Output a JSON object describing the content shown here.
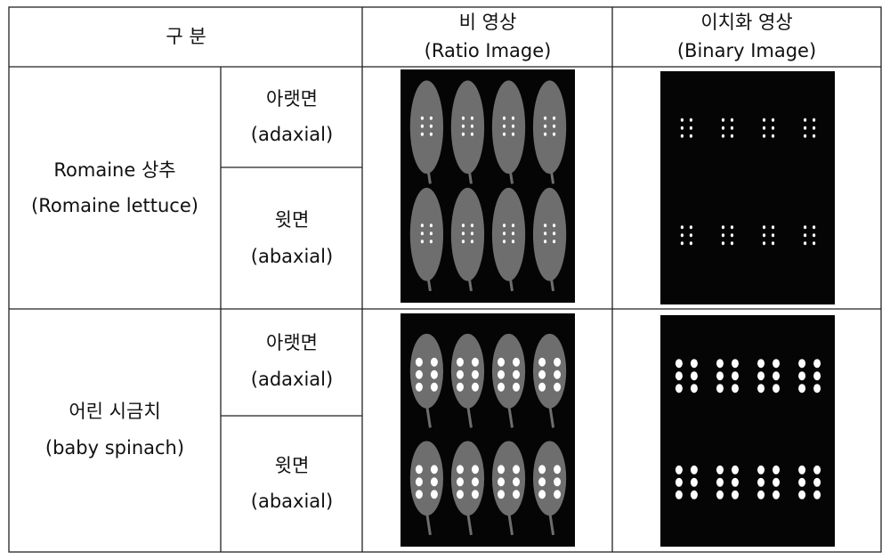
{
  "header": {
    "category": "구 분",
    "ratio": {
      "ko": "비 영상",
      "en": "(Ratio Image)"
    },
    "binary": {
      "ko": "이치화 영상",
      "en": "(Binary Image)"
    }
  },
  "rows": [
    {
      "sample": {
        "ko": "Romaine 상추",
        "en": "(Romaine lettuce)"
      },
      "sides": [
        {
          "ko": "아랫면",
          "en": "(adaxial)"
        },
        {
          "ko": "윗면",
          "en": "(abaxial)"
        }
      ]
    },
    {
      "sample": {
        "ko": "어린 시금치",
        "en": "(baby spinach)"
      },
      "sides": [
        {
          "ko": "아랫면",
          "en": "(adaxial)"
        },
        {
          "ko": "윗면",
          "en": "(abaxial)"
        }
      ]
    }
  ]
}
